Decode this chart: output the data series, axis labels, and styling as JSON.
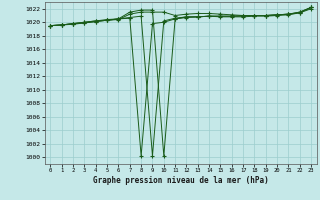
{
  "xlabel": "Graphe pression niveau de la mer (hPa)",
  "xlim": [
    -0.5,
    23.5
  ],
  "ylim": [
    999,
    1023
  ],
  "yticks": [
    1000,
    1002,
    1004,
    1006,
    1008,
    1010,
    1012,
    1014,
    1016,
    1018,
    1020,
    1022
  ],
  "xticks": [
    0,
    1,
    2,
    3,
    4,
    5,
    6,
    7,
    8,
    9,
    10,
    11,
    12,
    13,
    14,
    15,
    16,
    17,
    18,
    19,
    20,
    21,
    22,
    23
  ],
  "background_color": "#c5e8e8",
  "grid_color": "#9ccece",
  "line_color": "#1a5c1a",
  "series": [
    [
      1019.5,
      1019.6,
      1019.8,
      1020.0,
      1020.2,
      1020.3,
      1020.5,
      1020.6,
      1000.2,
      1019.8,
      1020.0,
      1020.5,
      1020.7,
      1020.8,
      1020.9,
      1020.9,
      1020.9,
      1020.9,
      1021.0,
      1021.0,
      1021.1,
      1021.2,
      1021.4,
      1022.2
    ],
    [
      1019.5,
      1019.6,
      1019.8,
      1020.0,
      1020.2,
      1020.4,
      1020.5,
      1020.7,
      1020.9,
      1000.2,
      1020.2,
      1020.6,
      1020.8,
      1020.8,
      1020.9,
      1020.9,
      1020.9,
      1021.0,
      1021.0,
      1021.0,
      1021.1,
      1021.2,
      1021.5,
      1022.2
    ],
    [
      1019.5,
      1019.6,
      1019.8,
      1019.9,
      1020.1,
      1020.3,
      1020.5,
      1021.5,
      1021.8,
      1021.8,
      1000.2,
      1020.5,
      1020.8,
      1020.8,
      1020.9,
      1020.8,
      1020.8,
      1020.8,
      1020.9,
      1020.9,
      1021.0,
      1021.1,
      1021.4,
      1022.0
    ],
    [
      1019.5,
      1019.6,
      1019.7,
      1019.9,
      1020.1,
      1020.3,
      1020.4,
      1021.2,
      1021.5,
      1021.5,
      1021.5,
      1021.0,
      1021.2,
      1021.3,
      1021.3,
      1021.2,
      1021.1,
      1021.0,
      1021.0,
      1021.0,
      1021.1,
      1021.2,
      1021.5,
      1022.2
    ]
  ]
}
